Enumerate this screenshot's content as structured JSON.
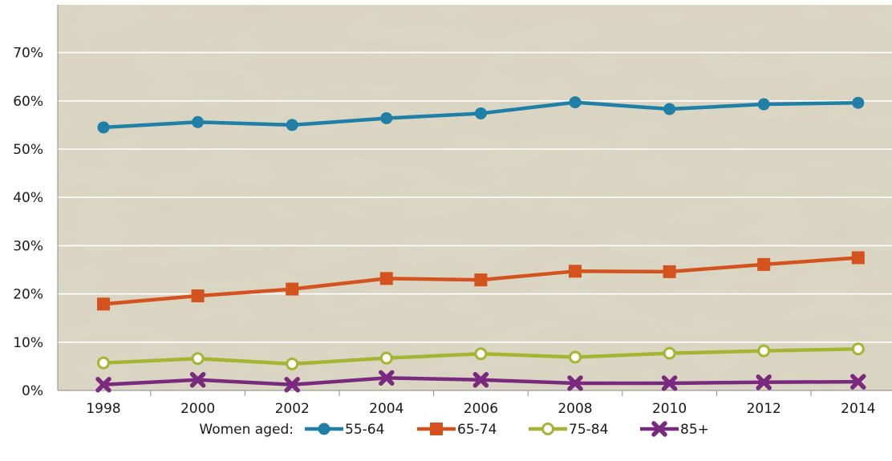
{
  "chart_data": {
    "type": "line",
    "title": "",
    "xlabel": "",
    "ylabel": "",
    "x": [
      "1998",
      "2000",
      "2002",
      "2004",
      "2006",
      "2008",
      "2010",
      "2012",
      "2014"
    ],
    "ylim": [
      0,
      80
    ],
    "yticks": [
      0,
      10,
      20,
      30,
      40,
      50,
      60,
      70
    ],
    "ytick_labels": [
      "0%",
      "10%",
      "20%",
      "30%",
      "40%",
      "50%",
      "60%",
      "70%"
    ],
    "grid": true,
    "legend_position": "bottom",
    "legend_title": "Women aged:",
    "background_color": "#d9d4c1",
    "series": [
      {
        "name": "55-64",
        "color": "#1f7fa6",
        "marker": "circle",
        "values": [
          54.5,
          55.6,
          55.0,
          56.4,
          57.4,
          59.7,
          58.3,
          59.3,
          59.6
        ]
      },
      {
        "name": "65-74",
        "color": "#d4521d",
        "marker": "square",
        "values": [
          17.9,
          19.6,
          21.0,
          23.2,
          22.9,
          24.7,
          24.6,
          26.1,
          27.5
        ]
      },
      {
        "name": "75-84",
        "color": "#a3b532",
        "marker": "open-circle",
        "values": [
          5.7,
          6.6,
          5.5,
          6.7,
          7.6,
          6.9,
          7.7,
          8.2,
          8.6
        ]
      },
      {
        "name": "85+",
        "color": "#7a2a7e",
        "marker": "x",
        "values": [
          1.2,
          2.2,
          1.2,
          2.6,
          2.2,
          1.5,
          1.5,
          1.7,
          1.8
        ]
      }
    ]
  }
}
